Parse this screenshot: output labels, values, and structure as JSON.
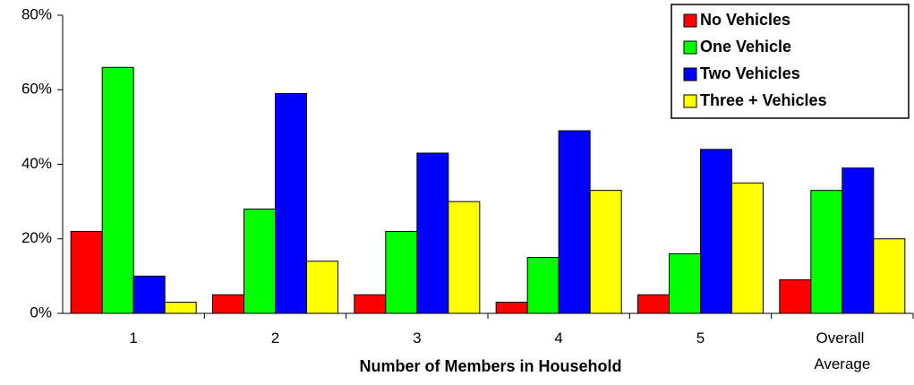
{
  "chart_data": {
    "type": "bar",
    "x_label": "Number of Members in Household",
    "categories": [
      "1",
      "2",
      "3",
      "4",
      "5",
      "Overall Average"
    ],
    "series": [
      {
        "name": "No Vehicles",
        "color": "#ff0000",
        "values": [
          22,
          5,
          5,
          3,
          5,
          9
        ]
      },
      {
        "name": "One Vehicle",
        "color": "#00ff00",
        "values": [
          66,
          28,
          22,
          15,
          16,
          33
        ]
      },
      {
        "name": "Two Vehicles",
        "color": "#0000ff",
        "values": [
          10,
          59,
          43,
          49,
          44,
          39
        ]
      },
      {
        "name": "Three + Vehicles",
        "color": "#ffff00",
        "values": [
          3,
          14,
          30,
          33,
          35,
          20
        ]
      }
    ],
    "ylim": [
      0,
      80
    ],
    "yticks": [
      {
        "value": 0,
        "label": "0%"
      },
      {
        "value": 20,
        "label": "20%"
      },
      {
        "value": 40,
        "label": "40%"
      },
      {
        "value": 60,
        "label": "60%"
      },
      {
        "value": 80,
        "label": "80%"
      }
    ],
    "legend": "upper right"
  }
}
